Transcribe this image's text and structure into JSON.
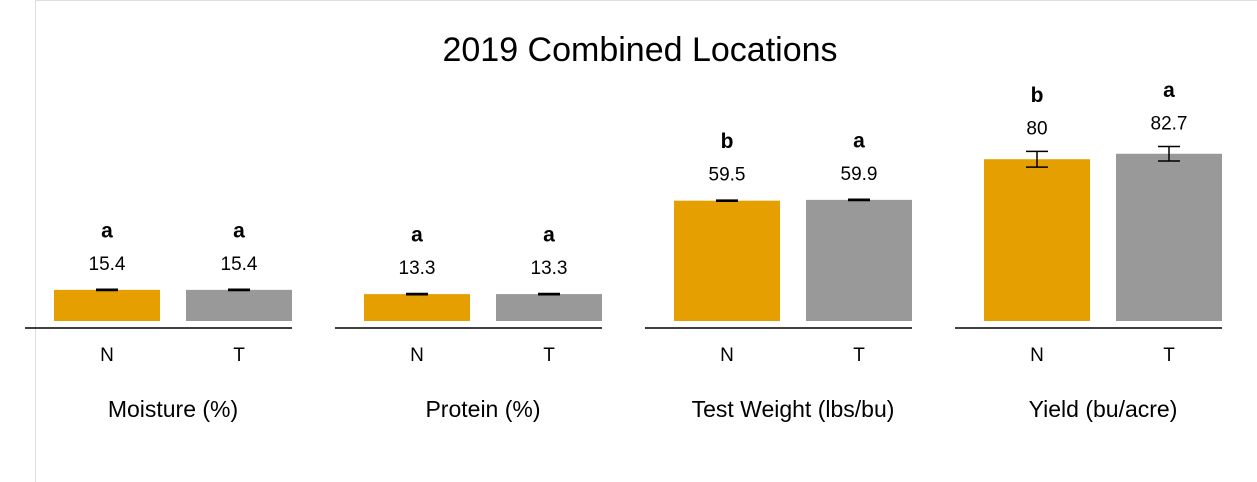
{
  "chart_data": {
    "type": "bar",
    "title": "2019 Combined Locations",
    "categories": [
      "N",
      "T"
    ],
    "colors": [
      "#e69f00",
      "#999999"
    ],
    "ylim": [
      0,
      90
    ],
    "panels": [
      {
        "label": "Moisture (%)",
        "values": [
          15.4,
          15.4
        ],
        "errors": [
          0.3,
          0.3
        ],
        "letters": [
          "a",
          "a"
        ]
      },
      {
        "label": "Protein (%)",
        "values": [
          13.3,
          13.3
        ],
        "errors": [
          0.3,
          0.3
        ],
        "letters": [
          "a",
          "a"
        ]
      },
      {
        "label": "Test Weight (lbs/bu)",
        "values": [
          59.5,
          59.9
        ],
        "errors": [
          0.3,
          0.3
        ],
        "letters": [
          "b",
          "a"
        ]
      },
      {
        "label": "Yield (bu/acre)",
        "values": [
          80,
          82.7
        ],
        "errors": [
          3.9,
          3.6
        ],
        "letters": [
          "b",
          "a"
        ]
      }
    ]
  }
}
